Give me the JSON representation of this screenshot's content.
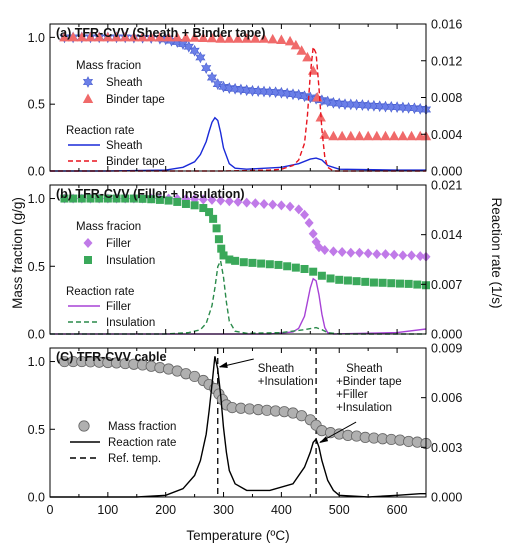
{
  "figure": {
    "xlabel": "Temperature (ºC)",
    "ylabel_left": "Mass fraction (g/g)",
    "ylabel_right": "Reaction rate (1/s)",
    "xticks": [
      "0",
      "100",
      "200",
      "300",
      "400",
      "500",
      "600"
    ]
  },
  "chart_data": [
    {
      "type": "line",
      "title": "(a) TFR-CVV (Sheath + Binder tape)",
      "xlim": [
        0,
        650
      ],
      "ylim_left": [
        0,
        1.1
      ],
      "ylim_right": [
        0,
        0.016
      ],
      "yticks_left": [
        "0.0",
        "0.5",
        "1.0"
      ],
      "yticks_right": [
        "0.000",
        "0.004",
        "0.008",
        "0.012",
        "0.016"
      ],
      "legend_mass_title": "Mass fracion",
      "legend_rate_title": "Reaction rate",
      "series": [
        {
          "name": "Sheath",
          "kind": "mass",
          "marker": "star",
          "color": "#6b7fe8",
          "x": [
            25,
            40,
            55,
            70,
            85,
            100,
            115,
            130,
            145,
            160,
            175,
            190,
            200,
            210,
            220,
            230,
            240,
            250,
            260,
            270,
            280,
            290,
            300,
            310,
            320,
            330,
            340,
            350,
            360,
            370,
            380,
            390,
            400,
            410,
            420,
            430,
            440,
            450,
            460,
            470,
            480,
            490,
            500,
            510,
            520,
            530,
            540,
            550,
            560,
            570,
            580,
            590,
            600,
            610,
            620,
            630,
            640,
            650
          ],
          "y": [
            1.0,
            1.0,
            1.0,
            1.0,
            1.0,
            1.0,
            1.0,
            1.0,
            0.998,
            0.997,
            0.995,
            0.99,
            0.985,
            0.975,
            0.965,
            0.95,
            0.93,
            0.9,
            0.85,
            0.77,
            0.7,
            0.65,
            0.63,
            0.62,
            0.615,
            0.61,
            0.605,
            0.6,
            0.598,
            0.595,
            0.592,
            0.59,
            0.585,
            0.58,
            0.575,
            0.57,
            0.56,
            0.55,
            0.54,
            0.53,
            0.52,
            0.51,
            0.505,
            0.5,
            0.498,
            0.496,
            0.494,
            0.49,
            0.488,
            0.485,
            0.482,
            0.48,
            0.478,
            0.475,
            0.472,
            0.47,
            0.465,
            0.46
          ]
        },
        {
          "name": "Binder tape",
          "kind": "mass",
          "marker": "triangle",
          "color": "#f06a6a",
          "x": [
            25,
            40,
            55,
            70,
            85,
            100,
            115,
            130,
            145,
            160,
            175,
            190,
            205,
            220,
            235,
            250,
            265,
            280,
            295,
            310,
            325,
            340,
            355,
            370,
            385,
            400,
            415,
            425,
            435,
            445,
            455,
            462,
            468,
            475,
            490,
            505,
            520,
            535,
            550,
            565,
            580,
            595,
            610,
            625,
            640,
            650
          ],
          "y": [
            1.0,
            1.0,
            1.0,
            1.0,
            1.0,
            1.0,
            1.0,
            1.0,
            1.0,
            1.0,
            1.0,
            1.0,
            1.0,
            1.0,
            0.998,
            0.997,
            0.995,
            0.993,
            0.99,
            0.99,
            0.99,
            0.99,
            0.99,
            0.99,
            0.985,
            0.98,
            0.97,
            0.94,
            0.9,
            0.85,
            0.75,
            0.55,
            0.4,
            0.27,
            0.26,
            0.26,
            0.26,
            0.26,
            0.26,
            0.26,
            0.26,
            0.26,
            0.26,
            0.26,
            0.26,
            0.26
          ]
        },
        {
          "name": "Sheath",
          "kind": "rate",
          "style": "solid",
          "color": "#1a2ad8",
          "x": [
            0,
            100,
            200,
            230,
            250,
            260,
            270,
            275,
            280,
            285,
            290,
            295,
            300,
            310,
            320,
            340,
            400,
            430,
            450,
            460,
            470,
            480,
            500,
            600,
            650
          ],
          "y": [
            0,
            0,
            0.0001,
            0.0004,
            0.001,
            0.0018,
            0.0032,
            0.0043,
            0.0053,
            0.0058,
            0.0055,
            0.0042,
            0.0025,
            0.0008,
            0.0003,
            0.0002,
            0.0004,
            0.0008,
            0.0013,
            0.0014,
            0.0012,
            0.0006,
            0.0002,
            0.0001,
            0.0001
          ]
        },
        {
          "name": "Binder tape",
          "kind": "rate",
          "style": "dashed",
          "color": "#e8141e",
          "x": [
            0,
            300,
            380,
            400,
            420,
            430,
            440,
            445,
            450,
            455,
            460,
            465,
            470,
            475,
            480,
            490,
            650
          ],
          "y": [
            0,
            0,
            0.0001,
            0.0002,
            0.0006,
            0.0012,
            0.003,
            0.006,
            0.0105,
            0.0135,
            0.0128,
            0.009,
            0.0045,
            0.0015,
            0.0004,
            0,
            0
          ]
        }
      ]
    },
    {
      "type": "line",
      "title": "(b) TFR-CVV (Filler + Insulation)",
      "xlim": [
        0,
        650
      ],
      "ylim_left": [
        0,
        1.1
      ],
      "ylim_right": [
        0,
        0.021
      ],
      "yticks_left": [
        "0.0",
        "0.5",
        "1.0"
      ],
      "yticks_right": [
        "0.000",
        "0.007",
        "0.014",
        "0.021"
      ],
      "legend_mass_title": "Mass fracion",
      "legend_rate_title": "Reaction rate",
      "series": [
        {
          "name": "Filler",
          "kind": "mass",
          "marker": "diamond",
          "color": "#c07ae8",
          "x": [
            25,
            40,
            55,
            70,
            85,
            100,
            115,
            130,
            145,
            160,
            175,
            190,
            205,
            220,
            235,
            250,
            265,
            280,
            295,
            310,
            325,
            340,
            355,
            370,
            385,
            400,
            415,
            430,
            440,
            448,
            455,
            460,
            465,
            475,
            490,
            505,
            520,
            535,
            550,
            565,
            580,
            595,
            610,
            625,
            640,
            650
          ],
          "y": [
            1.0,
            1.0,
            1.0,
            1.0,
            1.0,
            1.0,
            1.0,
            1.0,
            1.0,
            1.0,
            1.0,
            1.0,
            1.0,
            0.998,
            0.997,
            0.995,
            0.993,
            0.99,
            0.985,
            0.98,
            0.975,
            0.97,
            0.965,
            0.96,
            0.955,
            0.95,
            0.94,
            0.92,
            0.88,
            0.82,
            0.74,
            0.68,
            0.64,
            0.62,
            0.61,
            0.605,
            0.6,
            0.6,
            0.595,
            0.59,
            0.59,
            0.585,
            0.58,
            0.58,
            0.575,
            0.57
          ]
        },
        {
          "name": "Insulation",
          "kind": "mass",
          "marker": "square",
          "color": "#3aa85a",
          "x": [
            25,
            40,
            55,
            70,
            85,
            100,
            115,
            130,
            145,
            160,
            175,
            190,
            205,
            220,
            235,
            250,
            265,
            275,
            282,
            288,
            292,
            296,
            300,
            310,
            320,
            335,
            350,
            365,
            380,
            395,
            410,
            425,
            440,
            455,
            470,
            485,
            500,
            515,
            530,
            545,
            560,
            575,
            590,
            605,
            620,
            635,
            650
          ],
          "y": [
            1.0,
            1.0,
            1.0,
            1.0,
            1.0,
            1.0,
            1.0,
            1.0,
            1.0,
            0.998,
            0.995,
            0.99,
            0.985,
            0.975,
            0.96,
            0.95,
            0.93,
            0.9,
            0.85,
            0.78,
            0.7,
            0.63,
            0.58,
            0.55,
            0.54,
            0.53,
            0.525,
            0.52,
            0.515,
            0.51,
            0.5,
            0.49,
            0.48,
            0.46,
            0.43,
            0.41,
            0.4,
            0.395,
            0.39,
            0.385,
            0.38,
            0.378,
            0.375,
            0.372,
            0.37,
            0.365,
            0.36
          ]
        },
        {
          "name": "Filler",
          "kind": "rate",
          "style": "solid",
          "color": "#a742d6",
          "x": [
            0,
            380,
            420,
            430,
            440,
            445,
            450,
            455,
            460,
            465,
            470,
            475,
            480,
            490,
            600,
            650
          ],
          "y": [
            0,
            0,
            0.0003,
            0.0008,
            0.0025,
            0.0045,
            0.0065,
            0.0078,
            0.0075,
            0.0055,
            0.0028,
            0.0009,
            0.0002,
            0,
            0.0002,
            0.0007
          ]
        },
        {
          "name": "Insulation",
          "kind": "rate",
          "style": "dashed",
          "color": "#2a8a4a",
          "x": [
            0,
            200,
            240,
            260,
            270,
            280,
            285,
            290,
            295,
            300,
            305,
            310,
            320,
            340,
            400,
            440,
            460,
            470,
            480,
            500,
            650
          ],
          "y": [
            0,
            0,
            0.0002,
            0.0006,
            0.0015,
            0.004,
            0.0065,
            0.0095,
            0.0103,
            0.008,
            0.0045,
            0.0018,
            0.0004,
            0.0001,
            0.0002,
            0.0006,
            0.0009,
            0.0006,
            0.0002,
            0,
            0
          ]
        }
      ]
    },
    {
      "type": "line",
      "title": "(C) TFR-CVV cable",
      "xlim": [
        0,
        650
      ],
      "ylim_left": [
        0,
        1.1
      ],
      "ylim_right": [
        0,
        0.009
      ],
      "yticks_left": [
        "0.0",
        "0.5",
        "1.0"
      ],
      "yticks_right": [
        "0.000",
        "0.003",
        "0.006",
        "0.009"
      ],
      "ref_temps": [
        290,
        460
      ],
      "legend": {
        "mass": "Mass fraction",
        "rate": "Reaction rate",
        "ref": "Ref. temp."
      },
      "annotations": [
        {
          "text": [
            "Sheath",
            "+Insulation"
          ],
          "x": 290,
          "y": 0.96
        },
        {
          "text": [
            "Sheath",
            "+Binder tape",
            "+Filler",
            "+Insulation"
          ],
          "x": 460,
          "y": 0.42
        }
      ],
      "series": [
        {
          "name": "Mass fraction",
          "kind": "mass",
          "marker": "circle",
          "color": "#b0b0b0",
          "x": [
            25,
            40,
            55,
            70,
            85,
            100,
            115,
            130,
            145,
            160,
            175,
            190,
            205,
            220,
            235,
            250,
            265,
            275,
            285,
            292,
            298,
            305,
            315,
            330,
            345,
            360,
            375,
            390,
            405,
            420,
            435,
            450,
            460,
            470,
            485,
            500,
            515,
            530,
            545,
            560,
            575,
            590,
            605,
            620,
            635,
            650
          ],
          "y": [
            1.0,
            1.0,
            1.0,
            0.998,
            0.995,
            0.993,
            0.99,
            0.985,
            0.98,
            0.975,
            0.965,
            0.955,
            0.945,
            0.93,
            0.91,
            0.89,
            0.86,
            0.83,
            0.8,
            0.76,
            0.72,
            0.68,
            0.66,
            0.655,
            0.65,
            0.645,
            0.64,
            0.635,
            0.63,
            0.62,
            0.6,
            0.57,
            0.53,
            0.49,
            0.475,
            0.465,
            0.455,
            0.45,
            0.44,
            0.435,
            0.43,
            0.425,
            0.42,
            0.41,
            0.405,
            0.395
          ]
        },
        {
          "name": "Reaction rate",
          "kind": "rate",
          "style": "solid",
          "color": "#000000",
          "x": [
            0,
            150,
            200,
            230,
            250,
            260,
            270,
            275,
            280,
            285,
            290,
            295,
            300,
            305,
            310,
            320,
            340,
            380,
            420,
            440,
            450,
            455,
            460,
            465,
            470,
            480,
            490,
            500,
            550,
            600,
            640,
            650
          ],
          "y": [
            0,
            0,
            0.0001,
            0.0005,
            0.0013,
            0.0022,
            0.0038,
            0.0052,
            0.0068,
            0.0085,
            0.0077,
            0.0062,
            0.0042,
            0.0027,
            0.0016,
            0.0008,
            0.0004,
            0.0004,
            0.0008,
            0.0018,
            0.0027,
            0.0033,
            0.0035,
            0.003,
            0.0022,
            0.001,
            0.0004,
            0.0001,
            0,
            0.0001,
            0.0002,
            0.0002
          ]
        }
      ]
    }
  ]
}
